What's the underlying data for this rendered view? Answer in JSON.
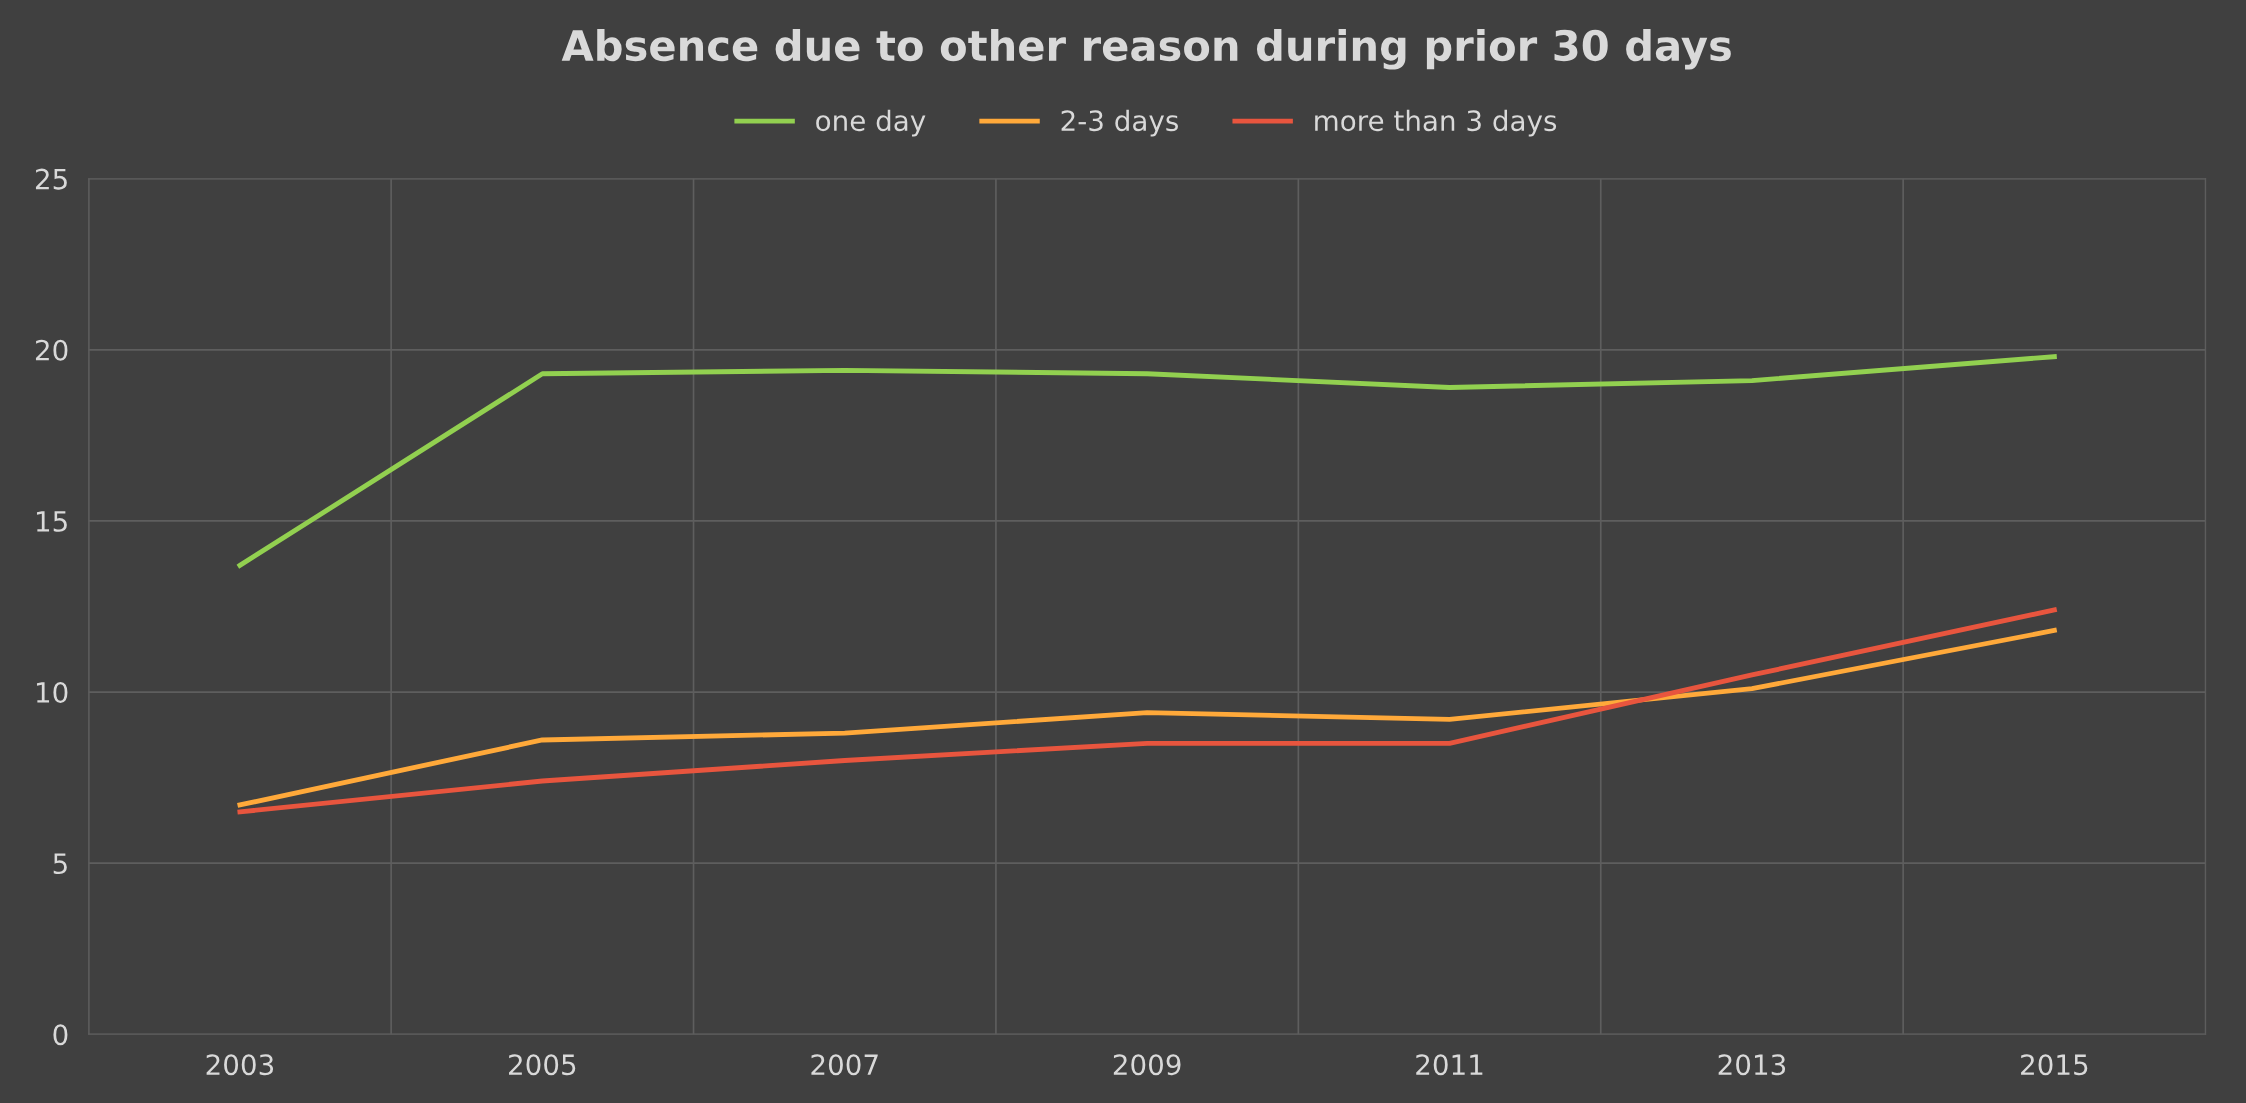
{
  "chart_data": {
    "type": "line",
    "title": "Absence due to other reason during prior 30 days",
    "categories": [
      "2003",
      "2005",
      "2007",
      "2009",
      "2011",
      "2013",
      "2015"
    ],
    "series": [
      {
        "name": "one day",
        "color": "#92d050",
        "values": [
          13.7,
          19.3,
          19.4,
          19.3,
          18.9,
          19.1,
          19.8
        ]
      },
      {
        "name": "2-3 days",
        "color": "#ffa93a",
        "values": [
          6.7,
          8.6,
          8.8,
          9.4,
          9.2,
          10.1,
          11.8
        ]
      },
      {
        "name": "more than 3 days",
        "color": "#e8553e",
        "values": [
          6.5,
          7.4,
          8.0,
          8.5,
          8.5,
          10.5,
          12.4
        ]
      }
    ],
    "ylim": [
      0,
      25
    ],
    "yticks": [
      0,
      5,
      10,
      15,
      20,
      25
    ],
    "grid": true,
    "legend": "top",
    "marker": "none",
    "line_style": "solid"
  }
}
